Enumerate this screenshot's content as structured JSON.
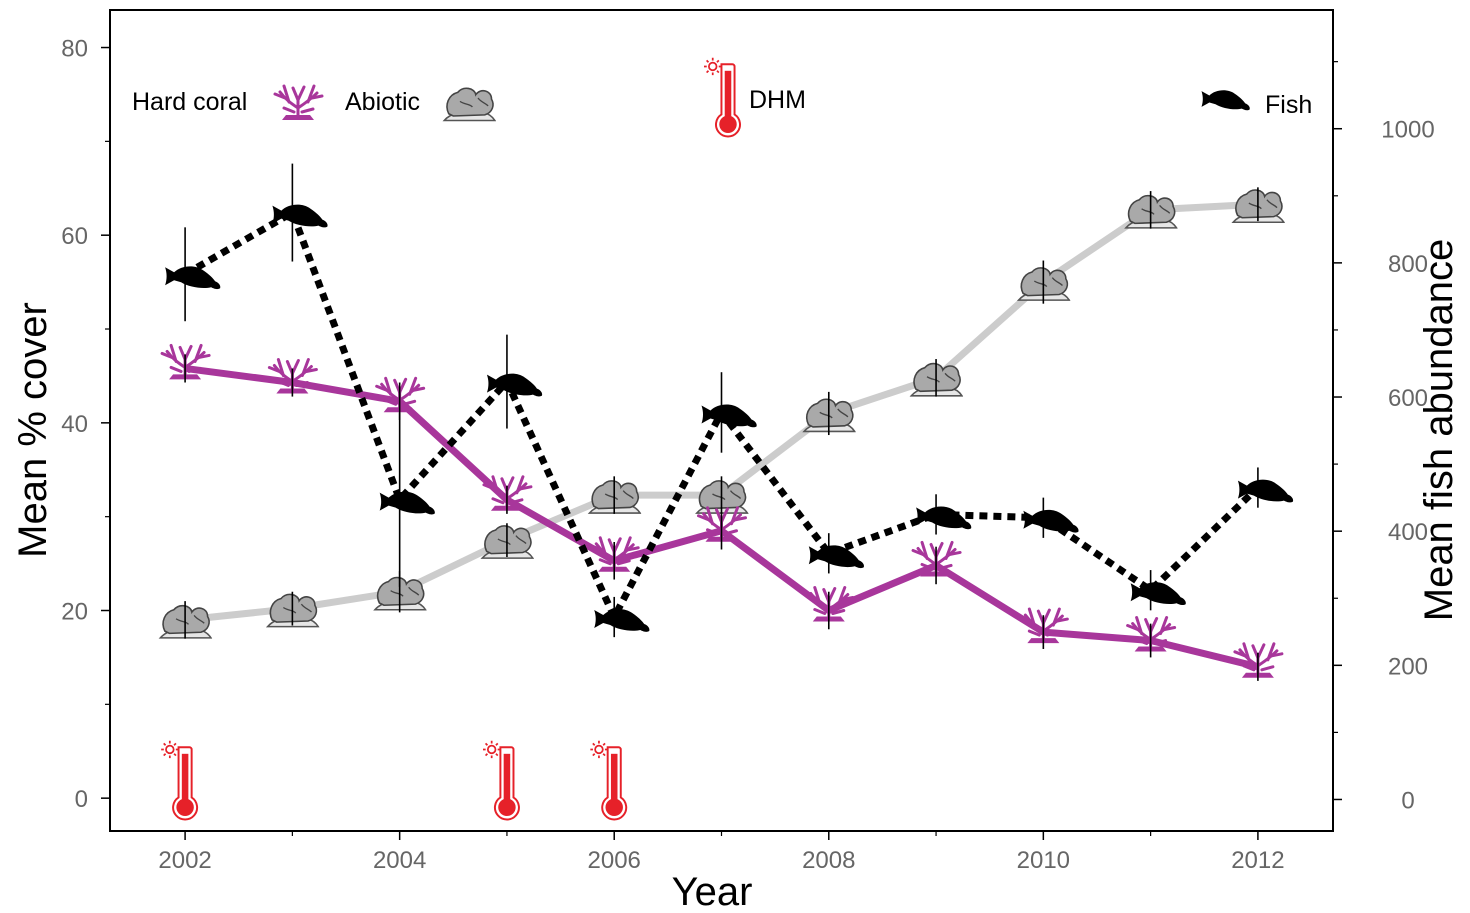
{
  "chart_data": {
    "type": "line",
    "xlabel": "Year",
    "ylabel": "Mean % cover",
    "y2label": "Mean fish abundance",
    "xlim": [
      2001.3,
      2012.7
    ],
    "ylim": [
      -3.5,
      84
    ],
    "y2lim": [
      -47,
      1177
    ],
    "x_ticks": [
      2002,
      2004,
      2006,
      2008,
      2010,
      2012
    ],
    "x_minor_ticks": [
      2003,
      2005,
      2007,
      2009,
      2011
    ],
    "y_ticks": [
      0,
      20,
      40,
      60,
      80
    ],
    "y_minor_ticks": [
      10,
      30,
      50,
      70
    ],
    "y2_ticks": [
      0,
      200,
      400,
      600,
      800,
      1000
    ],
    "y2_minor_ticks": [
      100,
      300,
      500,
      700,
      900,
      1100
    ],
    "grid": false,
    "legend": [
      {
        "label": "Hard coral",
        "icon": "coral-icon"
      },
      {
        "label": "Abiotic",
        "icon": "rock-icon"
      },
      {
        "label": "DHM",
        "icon": "thermometer-icon"
      },
      {
        "label": "Fish",
        "icon": "fish-icon"
      }
    ],
    "series": [
      {
        "name": "Abiotic",
        "axis": "left",
        "color": "#cccccc",
        "line": "solid",
        "icon": "rock-icon",
        "x": [
          2002,
          2003,
          2004,
          2005,
          2006,
          2007,
          2008,
          2009,
          2010,
          2011,
          2012
        ],
        "y": [
          19.0,
          20.2,
          22.0,
          27.5,
          32.3,
          32.3,
          41.0,
          44.8,
          55.0,
          62.7,
          63.3
        ],
        "err": [
          2.0,
          1.8,
          2.2,
          1.8,
          2.0,
          2.0,
          2.3,
          2.0,
          2.3,
          2.0,
          1.8
        ]
      },
      {
        "name": "Hard coral",
        "axis": "left",
        "color": "#a8369b",
        "line": "solid",
        "icon": "coral-icon",
        "x": [
          2002,
          2003,
          2004,
          2005,
          2006,
          2007,
          2008,
          2009,
          2010,
          2011,
          2012
        ],
        "y": [
          45.8,
          44.3,
          42.3,
          31.8,
          25.3,
          28.5,
          20.0,
          24.8,
          17.7,
          16.8,
          14.0
        ],
        "err": [
          1.5,
          1.5,
          2.0,
          1.5,
          2.0,
          2.0,
          2.0,
          2.0,
          1.8,
          1.8,
          1.5
        ]
      },
      {
        "name": "Fish",
        "axis": "right",
        "color": "#000000",
        "line": "dotted",
        "icon": "fish-icon",
        "x": [
          2002,
          2003,
          2004,
          2005,
          2006,
          2007,
          2008,
          2009,
          2010,
          2011,
          2012
        ],
        "y": [
          783,
          875,
          447,
          623,
          272,
          577,
          367,
          425,
          420,
          312,
          465
        ],
        "err": [
          70,
          73,
          130,
          70,
          30,
          60,
          30,
          30,
          30,
          30,
          30
        ]
      }
    ],
    "dhm_events": [
      {
        "x": 2002
      },
      {
        "x": 2005
      },
      {
        "x": 2006
      }
    ]
  }
}
